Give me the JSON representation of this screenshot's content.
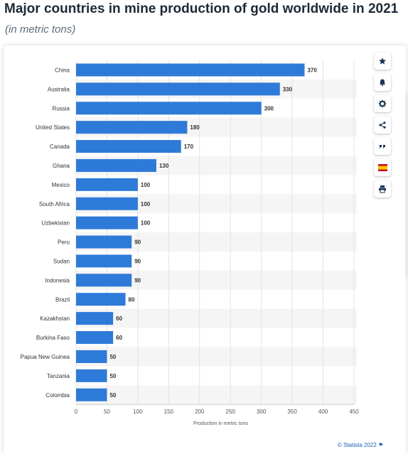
{
  "page": {
    "title": "Major countries in mine production of gold worldwide in 2021",
    "subtitle": "(in metric tons)"
  },
  "toolbar": {
    "icons": [
      "star-icon",
      "bell-icon",
      "gear-icon",
      "share-icon",
      "quote-icon",
      "flag-icon",
      "print-icon"
    ]
  },
  "footer": {
    "credit": "© Statista 2022",
    "flag_glyph": "⚑"
  },
  "colors": {
    "bar": "#2e7ad8",
    "band": "#f5f5f5",
    "grid": "#e3e3e3",
    "text": "#333333"
  },
  "chart_data": {
    "type": "bar",
    "orientation": "horizontal",
    "categories": [
      "China",
      "Australia",
      "Russia",
      "United States",
      "Canada",
      "Ghana",
      "Mexico",
      "South Africa",
      "Uzbekistan",
      "Peru",
      "Sudan",
      "Indonesia",
      "Brazil",
      "Kazakhstan",
      "Burkina Faso",
      "Papua New Guinea",
      "Tanzania",
      "Colombia"
    ],
    "values": [
      370,
      330,
      300,
      180,
      170,
      130,
      100,
      100,
      100,
      90,
      90,
      90,
      80,
      60,
      60,
      50,
      50,
      50
    ],
    "xlabel": "Production in metric tons",
    "xlim": [
      0,
      450
    ],
    "xticks": [
      0,
      50,
      100,
      150,
      200,
      250,
      300,
      350,
      400,
      450
    ],
    "data_labels": true,
    "grid": true
  }
}
